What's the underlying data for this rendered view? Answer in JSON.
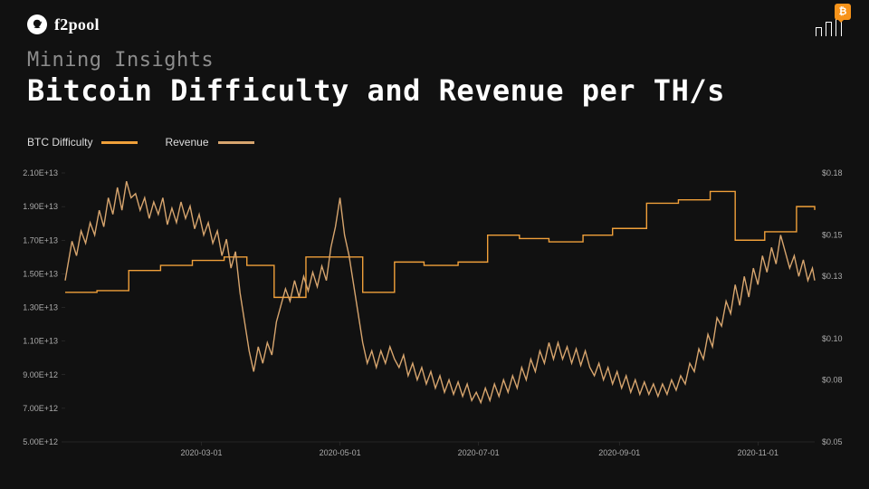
{
  "brand": {
    "name": "f2pool"
  },
  "icons": {
    "bitcoin_badge": "₿"
  },
  "subtitle": "Mining Insights",
  "title": "Bitcoin Difficulty and Revenue per TH/s",
  "legend": {
    "difficulty": {
      "label": "BTC Difficulty",
      "color": "#f0a03a"
    },
    "revenue": {
      "label": "Revenue",
      "color": "#d7a56e"
    }
  },
  "chart": {
    "background_color": "#111111",
    "tick_color": "#3a3a3a",
    "label_color": "#aaaaaa",
    "label_fontsize": 9,
    "line_width": 1.4,
    "x": {
      "min": 0,
      "max": 330,
      "ticks": [
        {
          "v": 60,
          "label": "2020-03-01"
        },
        {
          "v": 121,
          "label": "2020-05-01"
        },
        {
          "v": 182,
          "label": "2020-07-01"
        },
        {
          "v": 244,
          "label": "2020-09-01"
        },
        {
          "v": 305,
          "label": "2020-11-01"
        }
      ]
    },
    "y_left": {
      "min": 5000000000000.0,
      "max": 21000000000000.0,
      "ticks": [
        {
          "v": 5000000000000.0,
          "label": "5.00E+12"
        },
        {
          "v": 7000000000000.0,
          "label": "7.00E+12"
        },
        {
          "v": 9000000000000.0,
          "label": "9.00E+12"
        },
        {
          "v": 11000000000000.0,
          "label": "1.10E+13"
        },
        {
          "v": 13000000000000.0,
          "label": "1.30E+13"
        },
        {
          "v": 15000000000000.0,
          "label": "1.50E+13"
        },
        {
          "v": 17000000000000.0,
          "label": "1.70E+13"
        },
        {
          "v": 19000000000000.0,
          "label": "1.90E+13"
        },
        {
          "v": 21000000000000.0,
          "label": "2.10E+13"
        }
      ]
    },
    "y_right": {
      "min": 0.05,
      "max": 0.18,
      "ticks": [
        {
          "v": 0.05,
          "label": "$0.05"
        },
        {
          "v": 0.08,
          "label": "$0.08"
        },
        {
          "v": 0.1,
          "label": "$0.10"
        },
        {
          "v": 0.13,
          "label": "$0.13"
        },
        {
          "v": 0.15,
          "label": "$0.15"
        },
        {
          "v": 0.18,
          "label": "$0.18"
        }
      ]
    },
    "series": {
      "difficulty": {
        "color": "#f0a03a",
        "axis": "left",
        "type": "step",
        "points": [
          [
            0,
            13900000000000.0
          ],
          [
            14,
            14000000000000.0
          ],
          [
            28,
            15200000000000.0
          ],
          [
            42,
            15500000000000.0
          ],
          [
            56,
            15800000000000.0
          ],
          [
            70,
            16000000000000.0
          ],
          [
            80,
            15500000000000.0
          ],
          [
            92,
            13600000000000.0
          ],
          [
            106,
            16000000000000.0
          ],
          [
            120,
            16000000000000.0
          ],
          [
            131,
            13900000000000.0
          ],
          [
            145,
            15700000000000.0
          ],
          [
            158,
            15500000000000.0
          ],
          [
            173,
            15700000000000.0
          ],
          [
            186,
            17300000000000.0
          ],
          [
            200,
            17100000000000.0
          ],
          [
            213,
            16900000000000.0
          ],
          [
            228,
            17300000000000.0
          ],
          [
            241,
            17700000000000.0
          ],
          [
            256,
            19200000000000.0
          ],
          [
            270,
            19400000000000.0
          ],
          [
            284,
            19900000000000.0
          ],
          [
            295,
            17000000000000.0
          ],
          [
            308,
            17500000000000.0
          ],
          [
            322,
            19000000000000.0
          ],
          [
            330,
            18800000000000.0
          ]
        ]
      },
      "revenue": {
        "color": "#d7a56e",
        "axis": "right",
        "type": "line",
        "points": [
          [
            0,
            0.128
          ],
          [
            3,
            0.147
          ],
          [
            5,
            0.14
          ],
          [
            7,
            0.152
          ],
          [
            9,
            0.146
          ],
          [
            11,
            0.156
          ],
          [
            13,
            0.15
          ],
          [
            15,
            0.162
          ],
          [
            17,
            0.154
          ],
          [
            19,
            0.168
          ],
          [
            21,
            0.16
          ],
          [
            23,
            0.173
          ],
          [
            25,
            0.162
          ],
          [
            27,
            0.176
          ],
          [
            29,
            0.168
          ],
          [
            31,
            0.17
          ],
          [
            33,
            0.162
          ],
          [
            35,
            0.168
          ],
          [
            37,
            0.158
          ],
          [
            39,
            0.166
          ],
          [
            41,
            0.16
          ],
          [
            43,
            0.168
          ],
          [
            45,
            0.155
          ],
          [
            47,
            0.163
          ],
          [
            49,
            0.156
          ],
          [
            51,
            0.166
          ],
          [
            53,
            0.158
          ],
          [
            55,
            0.164
          ],
          [
            57,
            0.153
          ],
          [
            59,
            0.16
          ],
          [
            61,
            0.15
          ],
          [
            63,
            0.156
          ],
          [
            65,
            0.146
          ],
          [
            67,
            0.152
          ],
          [
            69,
            0.14
          ],
          [
            71,
            0.148
          ],
          [
            73,
            0.134
          ],
          [
            75,
            0.142
          ],
          [
            77,
            0.122
          ],
          [
            79,
            0.108
          ],
          [
            81,
            0.094
          ],
          [
            83,
            0.084
          ],
          [
            85,
            0.096
          ],
          [
            87,
            0.088
          ],
          [
            89,
            0.098
          ],
          [
            91,
            0.092
          ],
          [
            93,
            0.108
          ],
          [
            95,
            0.116
          ],
          [
            97,
            0.124
          ],
          [
            99,
            0.118
          ],
          [
            101,
            0.128
          ],
          [
            103,
            0.12
          ],
          [
            105,
            0.13
          ],
          [
            107,
            0.123
          ],
          [
            109,
            0.132
          ],
          [
            111,
            0.125
          ],
          [
            113,
            0.135
          ],
          [
            115,
            0.128
          ],
          [
            117,
            0.144
          ],
          [
            119,
            0.154
          ],
          [
            121,
            0.168
          ],
          [
            123,
            0.15
          ],
          [
            125,
            0.14
          ],
          [
            127,
            0.126
          ],
          [
            129,
            0.112
          ],
          [
            131,
            0.098
          ],
          [
            133,
            0.088
          ],
          [
            135,
            0.094
          ],
          [
            137,
            0.086
          ],
          [
            139,
            0.094
          ],
          [
            141,
            0.088
          ],
          [
            143,
            0.096
          ],
          [
            145,
            0.09
          ],
          [
            147,
            0.086
          ],
          [
            149,
            0.092
          ],
          [
            151,
            0.082
          ],
          [
            153,
            0.088
          ],
          [
            155,
            0.08
          ],
          [
            157,
            0.086
          ],
          [
            159,
            0.078
          ],
          [
            161,
            0.084
          ],
          [
            163,
            0.076
          ],
          [
            165,
            0.082
          ],
          [
            167,
            0.074
          ],
          [
            169,
            0.08
          ],
          [
            171,
            0.073
          ],
          [
            173,
            0.079
          ],
          [
            175,
            0.072
          ],
          [
            177,
            0.078
          ],
          [
            179,
            0.07
          ],
          [
            181,
            0.074
          ],
          [
            183,
            0.069
          ],
          [
            185,
            0.076
          ],
          [
            187,
            0.07
          ],
          [
            189,
            0.078
          ],
          [
            191,
            0.072
          ],
          [
            193,
            0.08
          ],
          [
            195,
            0.074
          ],
          [
            197,
            0.082
          ],
          [
            199,
            0.076
          ],
          [
            201,
            0.086
          ],
          [
            203,
            0.08
          ],
          [
            205,
            0.09
          ],
          [
            207,
            0.084
          ],
          [
            209,
            0.094
          ],
          [
            211,
            0.088
          ],
          [
            213,
            0.098
          ],
          [
            215,
            0.09
          ],
          [
            217,
            0.098
          ],
          [
            219,
            0.09
          ],
          [
            221,
            0.096
          ],
          [
            223,
            0.088
          ],
          [
            225,
            0.095
          ],
          [
            227,
            0.087
          ],
          [
            229,
            0.094
          ],
          [
            231,
            0.086
          ],
          [
            233,
            0.082
          ],
          [
            235,
            0.088
          ],
          [
            237,
            0.08
          ],
          [
            239,
            0.086
          ],
          [
            241,
            0.078
          ],
          [
            243,
            0.084
          ],
          [
            245,
            0.076
          ],
          [
            247,
            0.082
          ],
          [
            249,
            0.074
          ],
          [
            251,
            0.08
          ],
          [
            253,
            0.073
          ],
          [
            255,
            0.079
          ],
          [
            257,
            0.073
          ],
          [
            259,
            0.078
          ],
          [
            261,
            0.072
          ],
          [
            263,
            0.078
          ],
          [
            265,
            0.073
          ],
          [
            267,
            0.08
          ],
          [
            269,
            0.075
          ],
          [
            271,
            0.082
          ],
          [
            273,
            0.078
          ],
          [
            275,
            0.088
          ],
          [
            277,
            0.084
          ],
          [
            279,
            0.095
          ],
          [
            281,
            0.09
          ],
          [
            283,
            0.102
          ],
          [
            285,
            0.096
          ],
          [
            287,
            0.11
          ],
          [
            289,
            0.106
          ],
          [
            291,
            0.118
          ],
          [
            293,
            0.112
          ],
          [
            295,
            0.126
          ],
          [
            297,
            0.116
          ],
          [
            299,
            0.13
          ],
          [
            301,
            0.12
          ],
          [
            303,
            0.134
          ],
          [
            305,
            0.126
          ],
          [
            307,
            0.14
          ],
          [
            309,
            0.132
          ],
          [
            311,
            0.144
          ],
          [
            313,
            0.136
          ],
          [
            315,
            0.15
          ],
          [
            317,
            0.142
          ],
          [
            319,
            0.134
          ],
          [
            321,
            0.14
          ],
          [
            323,
            0.13
          ],
          [
            325,
            0.138
          ],
          [
            327,
            0.128
          ],
          [
            329,
            0.134
          ],
          [
            330,
            0.128
          ]
        ]
      }
    }
  }
}
